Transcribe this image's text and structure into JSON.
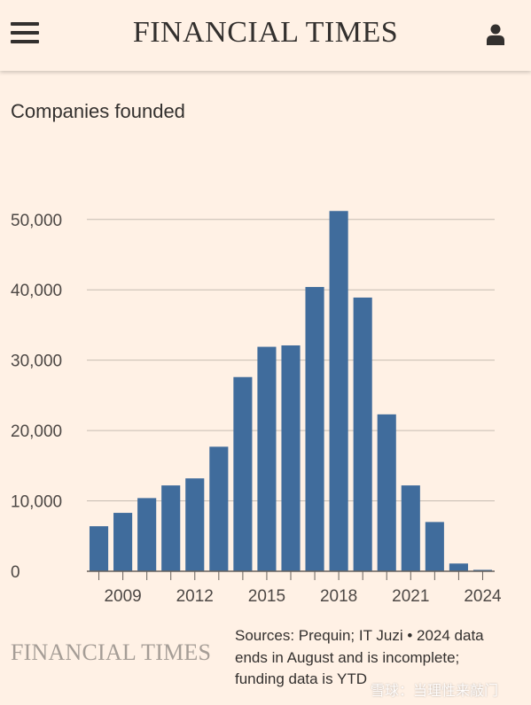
{
  "header": {
    "brand": "FINANCIAL TIMES",
    "menu_icon": "hamburger-menu-icon",
    "user_icon": "user-icon"
  },
  "chart_data": {
    "type": "bar",
    "title": "Companies founded",
    "x": [
      2008,
      2009,
      2010,
      2011,
      2012,
      2013,
      2014,
      2015,
      2016,
      2017,
      2018,
      2019,
      2020,
      2021,
      2022,
      2023,
      2024
    ],
    "values": [
      6400,
      8300,
      10400,
      12200,
      13200,
      17700,
      27600,
      31900,
      32100,
      40400,
      51200,
      38900,
      22300,
      12200,
      7000,
      1100,
      200
    ],
    "x_tick_labels": [
      "2009",
      "2012",
      "2015",
      "2018",
      "2021",
      "2024"
    ],
    "x_tick_values": [
      2009,
      2012,
      2015,
      2018,
      2021,
      2024
    ],
    "y_ticks": [
      0,
      10000,
      20000,
      30000,
      40000,
      50000
    ],
    "y_tick_labels": [
      "0",
      "10,000",
      "20,000",
      "30,000",
      "40,000",
      "50,000"
    ],
    "ylim": [
      0,
      54000
    ],
    "grid": true,
    "bar_color": "#406c9c",
    "grid_color": "#c6bcb2"
  },
  "footer": {
    "brand": "FINANCIAL TIMES",
    "source_line1": "Sources: Prequin; IT Juzi • 2024 data",
    "source_line2": "ends in August and is incomplete;",
    "source_line3": "funding data is YTD",
    "watermark": "雪球：当理性来敲门"
  }
}
